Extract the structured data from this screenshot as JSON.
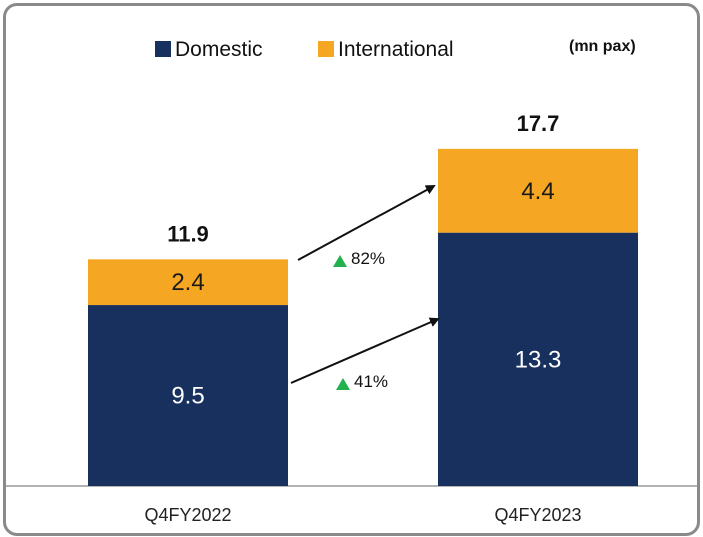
{
  "chart_data": {
    "type": "bar",
    "stacked": true,
    "unit_label": "(mn pax)",
    "categories": [
      "Q4FY2022",
      "Q4FY2023"
    ],
    "series": [
      {
        "name": "Domestic",
        "values": [
          9.5,
          13.3
        ],
        "color": "#17305e"
      },
      {
        "name": "International",
        "values": [
          2.4,
          4.4
        ],
        "color": "#f5a623"
      }
    ],
    "totals": [
      "11.9",
      "17.7"
    ],
    "value_labels": [
      [
        "9.5",
        "13.3"
      ],
      [
        "2.4",
        "4.4"
      ]
    ],
    "growth": [
      {
        "series": "International",
        "label": "82%"
      },
      {
        "series": "Domestic",
        "label": "41%"
      }
    ],
    "legend_position": "top",
    "grid": false,
    "ylim": [
      0,
      18.9
    ]
  }
}
